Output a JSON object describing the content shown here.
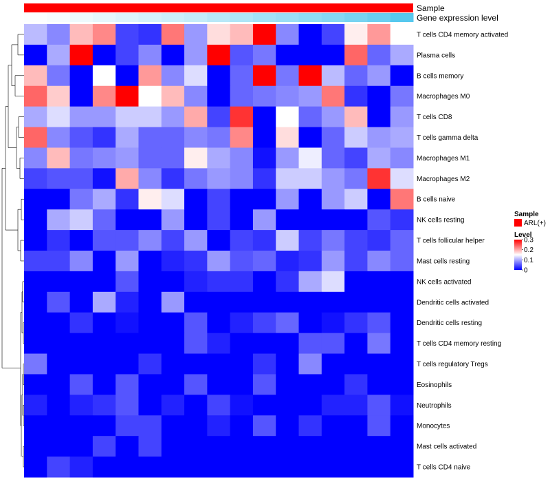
{
  "chart_data": {
    "type": "heatmap",
    "title": "",
    "color_scale": {
      "low": "#0000FF",
      "mid": "#FFFFFF",
      "high": "#FF0000",
      "min": 0,
      "mid_value": 0.15,
      "max": 0.3
    },
    "top_annotations": [
      {
        "name": "Sample",
        "kind": "constant",
        "color": "#FF0000"
      },
      {
        "name": "Gene expression level",
        "kind": "gradient",
        "low_color": "#FFFFFF",
        "high_color": "#56C8EE"
      }
    ],
    "legend": {
      "sample": {
        "title": "Sample",
        "items": [
          {
            "label": "ARL(+)",
            "color": "#FF0000"
          }
        ]
      },
      "level": {
        "title": "Level",
        "ticks": [
          "0.3",
          "0.2",
          "0.1",
          "0"
        ],
        "tick_values": [
          0.3,
          0.2,
          0.1,
          0
        ]
      }
    },
    "rows": [
      "T cells CD4 memory activated",
      "Plasma cells",
      "B cells memory",
      "Macrophages M0",
      "T cells CD8",
      "T cells gamma delta",
      "Macrophages M1",
      "Macrophages M2",
      "B cells naive",
      "NK cells resting",
      "T cells follicular helper",
      "Mast cells resting",
      "NK cells activated",
      "Dendritic cells activated",
      "Dendritic cells resting",
      "T cells CD4 memory resting",
      "T cells regulatory  Tregs",
      "Eosinophils",
      "Neutrophils",
      "Monocytes",
      "Mast cells activated",
      "T cells CD4 naive"
    ],
    "n_columns": 17,
    "values": [
      [
        0.11,
        0.08,
        0.19,
        0.22,
        0.04,
        0.03,
        0.23,
        0.09,
        0.17,
        0.19,
        0.3,
        0.08,
        0.0,
        0.04,
        0.16,
        0.21,
        0.15
      ],
      [
        0.0,
        0.1,
        0.3,
        0.0,
        0.04,
        0.08,
        0.0,
        0.09,
        0.3,
        0.05,
        0.07,
        0.0,
        0.0,
        0.0,
        0.24,
        0.06,
        0.1
      ],
      [
        0.19,
        0.07,
        0.0,
        0.15,
        0.0,
        0.21,
        0.08,
        0.13,
        0.0,
        0.06,
        0.3,
        0.07,
        0.3,
        0.11,
        0.06,
        0.09,
        0.0
      ],
      [
        0.24,
        0.18,
        0.0,
        0.22,
        0.3,
        0.15,
        0.19,
        0.08,
        0.0,
        0.06,
        0.07,
        0.08,
        0.09,
        0.23,
        0.03,
        0.0,
        0.07
      ],
      [
        0.1,
        0.13,
        0.09,
        0.09,
        0.12,
        0.12,
        0.09,
        0.2,
        0.04,
        0.27,
        0.0,
        0.15,
        0.06,
        0.09,
        0.19,
        0.0,
        0.09
      ],
      [
        0.24,
        0.08,
        0.05,
        0.03,
        0.1,
        0.06,
        0.06,
        0.08,
        0.07,
        0.22,
        0.0,
        0.17,
        0.0,
        0.06,
        0.12,
        0.09,
        0.1
      ],
      [
        0.08,
        0.19,
        0.07,
        0.08,
        0.09,
        0.06,
        0.06,
        0.16,
        0.1,
        0.08,
        0.01,
        0.09,
        0.14,
        0.06,
        0.04,
        0.1,
        0.08
      ],
      [
        0.04,
        0.05,
        0.05,
        0.01,
        0.2,
        0.08,
        0.03,
        0.07,
        0.09,
        0.08,
        0.03,
        0.12,
        0.12,
        0.09,
        0.07,
        0.27,
        0.13
      ],
      [
        0.0,
        0.0,
        0.07,
        0.1,
        0.03,
        0.16,
        0.13,
        0.0,
        0.04,
        0.0,
        0.0,
        0.09,
        0.0,
        0.09,
        0.12,
        0.0,
        0.23
      ],
      [
        0.0,
        0.1,
        0.12,
        0.06,
        0.0,
        0.0,
        0.09,
        0.0,
        0.04,
        0.0,
        0.09,
        0.0,
        0.0,
        0.0,
        0.0,
        0.05,
        0.03
      ],
      [
        0.0,
        0.03,
        0.0,
        0.05,
        0.05,
        0.08,
        0.04,
        0.09,
        0.0,
        0.04,
        0.03,
        0.12,
        0.04,
        0.07,
        0.04,
        0.03,
        0.06
      ],
      [
        0.04,
        0.04,
        0.08,
        0.0,
        0.09,
        0.0,
        0.02,
        0.03,
        0.09,
        0.05,
        0.06,
        0.02,
        0.03,
        0.09,
        0.04,
        0.08,
        0.06
      ],
      [
        0.0,
        0.0,
        0.0,
        0.0,
        0.05,
        0.0,
        0.0,
        0.02,
        0.03,
        0.03,
        0.0,
        0.03,
        0.1,
        0.13,
        0.0,
        0.0,
        0.0
      ],
      [
        0.0,
        0.05,
        0.0,
        0.1,
        0.02,
        0.0,
        0.09,
        0.0,
        0.0,
        0.0,
        0.0,
        0.0,
        0.0,
        0.0,
        0.0,
        0.0,
        0.0
      ],
      [
        0.0,
        0.0,
        0.03,
        0.0,
        0.01,
        0.0,
        0.0,
        0.05,
        0.0,
        0.02,
        0.04,
        0.06,
        0.0,
        0.01,
        0.03,
        0.05,
        0.0
      ],
      [
        0.0,
        0.0,
        0.0,
        0.0,
        0.0,
        0.0,
        0.0,
        0.05,
        0.02,
        0.0,
        0.0,
        0.0,
        0.05,
        0.05,
        0.0,
        0.07,
        0.0
      ],
      [
        0.07,
        0.0,
        0.0,
        0.0,
        0.0,
        0.03,
        0.0,
        0.0,
        0.0,
        0.0,
        0.03,
        0.0,
        0.08,
        0.0,
        0.0,
        0.0,
        0.0
      ],
      [
        0.0,
        0.0,
        0.05,
        0.0,
        0.05,
        0.0,
        0.0,
        0.05,
        0.0,
        0.0,
        0.05,
        0.0,
        0.0,
        0.0,
        0.03,
        0.0,
        0.0
      ],
      [
        0.02,
        0.0,
        0.02,
        0.03,
        0.05,
        0.0,
        0.02,
        0.0,
        0.04,
        0.01,
        0.0,
        0.0,
        0.0,
        0.02,
        0.02,
        0.05,
        0.01
      ],
      [
        0.0,
        0.0,
        0.0,
        0.0,
        0.04,
        0.04,
        0.0,
        0.0,
        0.02,
        0.0,
        0.05,
        0.0,
        0.03,
        0.0,
        0.0,
        0.05,
        0.0
      ],
      [
        0.0,
        0.0,
        0.0,
        0.04,
        0.0,
        0.04,
        0.0,
        0.0,
        0.0,
        0.0,
        0.0,
        0.0,
        0.0,
        0.0,
        0.0,
        0.0,
        0.0
      ],
      [
        0.0,
        0.04,
        0.02,
        0.0,
        0.0,
        0.0,
        0.0,
        0.0,
        0.0,
        0.0,
        0.0,
        0.0,
        0.0,
        0.0,
        0.0,
        0.0,
        0.0
      ]
    ],
    "gene_expression_level": [
      0.02,
      0.05,
      0.1,
      0.15,
      0.2,
      0.25,
      0.3,
      0.35,
      0.42,
      0.48,
      0.55,
      0.6,
      0.66,
      0.72,
      0.8,
      0.88,
      1.0
    ],
    "row_dendrogram": "hierarchical clustering of rows (left side)"
  }
}
